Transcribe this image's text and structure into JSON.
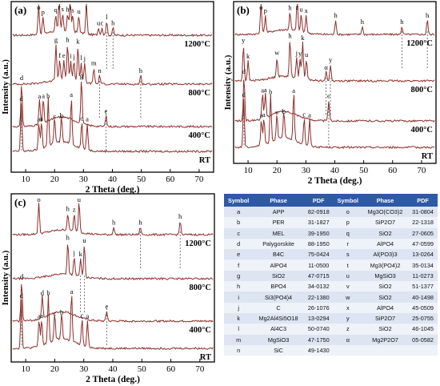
{
  "chart_data": [
    {
      "panel": "(a)",
      "type": "line",
      "xlabel": "2 Theta (deg.)",
      "ylabel": "Intensity (a.u.)",
      "xlim": [
        5,
        75
      ],
      "xticks": [
        10,
        20,
        30,
        40,
        50,
        60,
        70
      ],
      "series": [
        {
          "name": "1200°C",
          "peaks": [
            [
              14.5,
              "o"
            ],
            [
              16.0,
              "p"
            ],
            [
              20.4,
              "q"
            ],
            [
              21.6,
              "r"
            ],
            [
              22.8,
              "s"
            ],
            [
              24.5,
              "h"
            ],
            [
              25.4,
              "t"
            ],
            [
              26.3,
              "s"
            ],
            [
              28.4,
              "u"
            ],
            [
              31.0,
              "t"
            ],
            [
              35.2,
              "u"
            ],
            [
              36.4,
              "c"
            ],
            [
              38.0,
              "l"
            ],
            [
              40.2,
              "h"
            ]
          ]
        },
        {
          "name": "800°C",
          "peaks": [
            [
              20.5,
              "g"
            ],
            [
              21.8,
              "f"
            ],
            [
              23.2,
              "e"
            ],
            [
              24.5,
              "h"
            ],
            [
              25.6,
              "i"
            ],
            [
              26.7,
              "j"
            ],
            [
              28.1,
              "k"
            ],
            [
              29.2,
              "l"
            ],
            [
              30.4,
              "j"
            ],
            [
              33.6,
              "m"
            ],
            [
              35.6,
              "n"
            ],
            [
              49.8,
              "h"
            ]
          ]
        },
        {
          "name": "400°C",
          "peaks": [
            [
              8.6,
              "d"
            ],
            [
              14.8,
              "a"
            ],
            [
              16.1,
              "a"
            ],
            [
              29.3,
              "g"
            ],
            [
              37.8,
              "e"
            ]
          ]
        },
        {
          "name": "RT",
          "peaks": [
            [
              8.5,
              "d"
            ],
            [
              14.6,
              "a"
            ],
            [
              15.5,
              "a"
            ],
            [
              17.8,
              "b"
            ],
            [
              20.0,
              "c"
            ],
            [
              22.4,
              "b"
            ],
            [
              25.8,
              "a"
            ],
            [
              29.4,
              "c"
            ],
            [
              31.3,
              "a"
            ]
          ]
        }
      ]
    },
    {
      "panel": "(b)",
      "type": "line",
      "xlabel": "2 Theta (deg.)",
      "ylabel": "Intensity (a.u.)",
      "xlim": [
        5,
        75
      ],
      "xticks": [
        10,
        20,
        30,
        40,
        50,
        60,
        70
      ],
      "series": [
        {
          "name": "1200°C",
          "peaks": [
            [
              14.5,
              "o"
            ],
            [
              16.0,
              "p"
            ],
            [
              24.5,
              "h"
            ],
            [
              27.0,
              "z"
            ],
            [
              28.4,
              "u"
            ],
            [
              30.1,
              "x"
            ],
            [
              40.3,
              "h"
            ],
            [
              49.5,
              "h"
            ],
            [
              63.2,
              "h"
            ],
            [
              72.0,
              "h"
            ]
          ]
        },
        {
          "name": "800°C",
          "peaks": [
            [
              8.4,
              "y"
            ],
            [
              10.0,
              "k"
            ],
            [
              20.0,
              "w"
            ],
            [
              24.5,
              "h"
            ],
            [
              26.8,
              "j"
            ],
            [
              28.0,
              "y"
            ],
            [
              28.9,
              "k"
            ],
            [
              30.2,
              "u"
            ],
            [
              37.0,
              "α"
            ],
            [
              38.5,
              "y"
            ]
          ]
        },
        {
          "name": "400°C",
          "peaks": [
            [
              8.6,
              "d"
            ],
            [
              15.0,
              "a"
            ],
            [
              16.0,
              "a"
            ],
            [
              37.9,
              "e"
            ]
          ]
        },
        {
          "name": "RT",
          "peaks": [
            [
              8.5,
              "d"
            ],
            [
              14.6,
              "a"
            ],
            [
              15.5,
              "a"
            ],
            [
              17.8,
              "b"
            ],
            [
              20.0,
              "c"
            ],
            [
              22.4,
              "b"
            ],
            [
              25.8,
              "a"
            ],
            [
              29.4,
              "c"
            ],
            [
              31.3,
              "a"
            ]
          ]
        }
      ]
    },
    {
      "panel": "(c)",
      "type": "line",
      "xlabel": "2 Theta (deg.)",
      "ylabel": "Intensity (a.u.)",
      "xlim": [
        5,
        75
      ],
      "xticks": [
        10,
        20,
        30,
        40,
        50,
        60,
        70
      ],
      "series": [
        {
          "name": "1200°C",
          "peaks": [
            [
              14.5,
              "o"
            ],
            [
              24.5,
              "h"
            ],
            [
              26.7,
              "z"
            ],
            [
              28.4,
              "u"
            ],
            [
              40.3,
              "h"
            ],
            [
              49.5,
              "h"
            ],
            [
              63.2,
              "h"
            ]
          ]
        },
        {
          "name": "800°C",
          "peaks": [
            [
              24.5,
              "h"
            ],
            [
              26.7,
              "j"
            ],
            [
              28.9,
              "k"
            ],
            [
              30.2,
              "u"
            ]
          ]
        },
        {
          "name": "400°C",
          "peaks": [
            [
              8.6,
              "d"
            ],
            [
              15.7,
              "d"
            ],
            [
              37.9,
              "e"
            ]
          ]
        },
        {
          "name": "RT",
          "peaks": [
            [
              8.5,
              "d"
            ],
            [
              14.6,
              "a"
            ],
            [
              15.5,
              "a"
            ],
            [
              17.8,
              "b"
            ],
            [
              20.0,
              "c"
            ],
            [
              22.4,
              "b"
            ],
            [
              25.8,
              "a"
            ],
            [
              29.4,
              "c"
            ],
            [
              31.3,
              "a"
            ]
          ]
        }
      ]
    }
  ],
  "table": {
    "headers": [
      "Symbol",
      "Phase",
      "PDF",
      "Symbol",
      "Phase",
      "PDF"
    ],
    "rows": [
      [
        "a",
        "APP",
        "82-0918",
        "o",
        "Mg3O(CO3)2",
        "31-0804"
      ],
      [
        "b",
        "PER",
        "31-1827",
        "p",
        "SiP2O7",
        "22-1318"
      ],
      [
        "c",
        "MEL",
        "39-1950",
        "q",
        "SiO2",
        "27-0605"
      ],
      [
        "d",
        "Palygorskite",
        "88-1950",
        "r",
        "AlPO4",
        "47-0599"
      ],
      [
        "e",
        "B4C",
        "75-0424",
        "s",
        "Al(PO3)3",
        "13-0264"
      ],
      [
        "f",
        "AlPO4",
        "11-0500",
        "t",
        "Mg3(PO4)2",
        "35-0134"
      ],
      [
        "g",
        "SiO2",
        "47-0715",
        "u",
        "MgSiO3",
        "11-0273"
      ],
      [
        "h",
        "BPO4",
        "34-0132",
        "v",
        "SiO2",
        "51-1377"
      ],
      [
        "i",
        "Si3(PO4)4",
        "22-1380",
        "w",
        "SiO2",
        "40-1498"
      ],
      [
        "j",
        "C",
        "26-1076",
        "x",
        "AlPO4",
        "45-0509"
      ],
      [
        "k",
        "Mg2Al4Si5O18",
        "13-0294",
        "y",
        "SiP2O7",
        "25-0755"
      ],
      [
        "l",
        "Al4C3",
        "50-0740",
        "z",
        "SiO2",
        "46-1045"
      ],
      [
        "m",
        "MgSiO3",
        "47-1750",
        "α",
        "Mg2P2O7",
        "05-0582"
      ],
      [
        "n",
        "SiC",
        "49-1430",
        "",
        "",
        ""
      ]
    ]
  }
}
